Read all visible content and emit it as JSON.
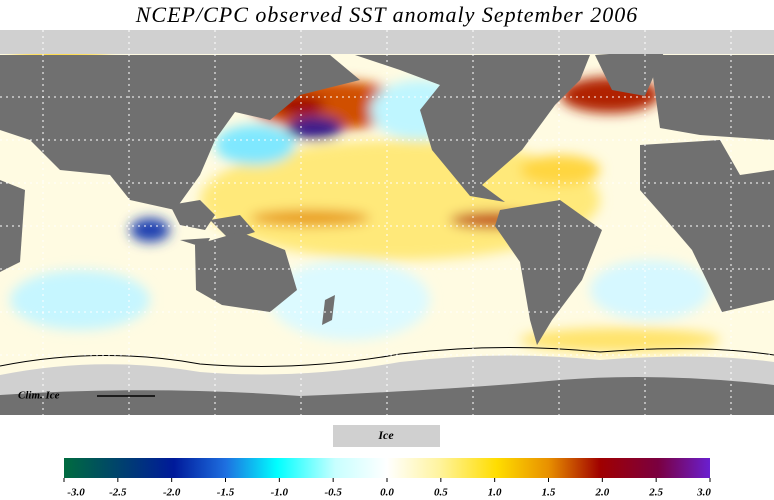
{
  "title": "NCEP/CPC observed SST anomaly September 2006",
  "map": {
    "clim_ice_label": "Clim. Ice"
  },
  "legend": {
    "ice_label": "Ice",
    "colorbar": {
      "ticks": [
        {
          "value": -3.0,
          "label": "-3.0"
        },
        {
          "value": -2.5,
          "label": "-2.5"
        },
        {
          "value": -2.0,
          "label": "-2.0"
        },
        {
          "value": -1.5,
          "label": "-1.5"
        },
        {
          "value": -1.0,
          "label": "-1.0"
        },
        {
          "value": -0.5,
          "label": "-0.5"
        },
        {
          "value": 0,
          "label": "0.0"
        },
        {
          "value": 0.5,
          "label": "0.5"
        },
        {
          "value": 1.0,
          "label": "1.0"
        },
        {
          "value": 1.5,
          "label": "1.5"
        },
        {
          "value": 2.0,
          "label": "2.0"
        },
        {
          "value": 2.5,
          "label": "2.5"
        },
        {
          "value": 3.0,
          "label": "3.0"
        }
      ]
    }
  }
}
